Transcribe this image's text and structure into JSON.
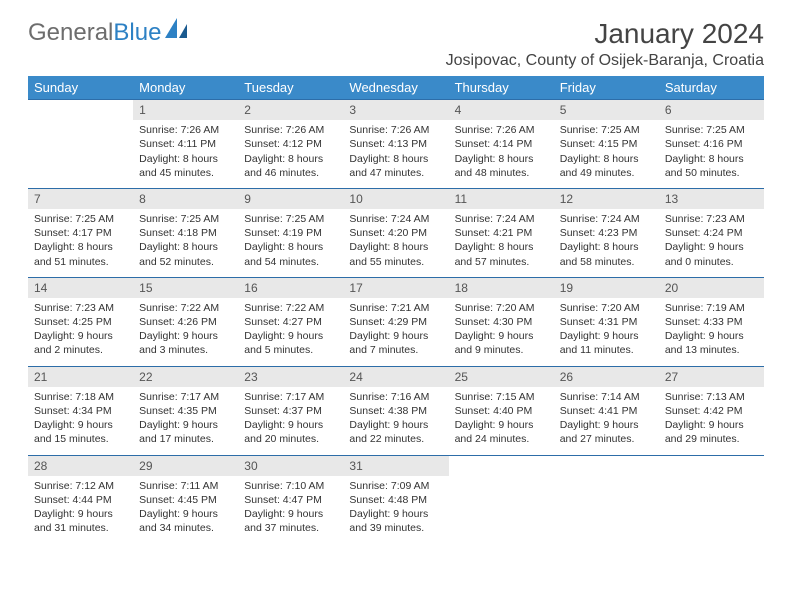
{
  "logo": {
    "part1": "General",
    "part2": "Blue"
  },
  "title": {
    "month": "January 2024",
    "location": "Josipovac, County of Osijek-Baranja, Croatia"
  },
  "dayHeaders": [
    "Sunday",
    "Monday",
    "Tuesday",
    "Wednesday",
    "Thursday",
    "Friday",
    "Saturday"
  ],
  "colors": {
    "headerBg": "#3a8ac9",
    "headerText": "#ffffff",
    "dayNumBg": "#e8e8e8",
    "borderTop": "#2d6da8",
    "text": "#333333",
    "logoGray": "#6d6d6d",
    "logoBlue": "#2d81c4"
  },
  "weeks": [
    {
      "nums": [
        "",
        "1",
        "2",
        "3",
        "4",
        "5",
        "6"
      ],
      "cells": [
        {
          "lines": []
        },
        {
          "lines": [
            "Sunrise: 7:26 AM",
            "Sunset: 4:11 PM",
            "Daylight: 8 hours",
            "and 45 minutes."
          ]
        },
        {
          "lines": [
            "Sunrise: 7:26 AM",
            "Sunset: 4:12 PM",
            "Daylight: 8 hours",
            "and 46 minutes."
          ]
        },
        {
          "lines": [
            "Sunrise: 7:26 AM",
            "Sunset: 4:13 PM",
            "Daylight: 8 hours",
            "and 47 minutes."
          ]
        },
        {
          "lines": [
            "Sunrise: 7:26 AM",
            "Sunset: 4:14 PM",
            "Daylight: 8 hours",
            "and 48 minutes."
          ]
        },
        {
          "lines": [
            "Sunrise: 7:25 AM",
            "Sunset: 4:15 PM",
            "Daylight: 8 hours",
            "and 49 minutes."
          ]
        },
        {
          "lines": [
            "Sunrise: 7:25 AM",
            "Sunset: 4:16 PM",
            "Daylight: 8 hours",
            "and 50 minutes."
          ]
        }
      ]
    },
    {
      "nums": [
        "7",
        "8",
        "9",
        "10",
        "11",
        "12",
        "13"
      ],
      "cells": [
        {
          "lines": [
            "Sunrise: 7:25 AM",
            "Sunset: 4:17 PM",
            "Daylight: 8 hours",
            "and 51 minutes."
          ]
        },
        {
          "lines": [
            "Sunrise: 7:25 AM",
            "Sunset: 4:18 PM",
            "Daylight: 8 hours",
            "and 52 minutes."
          ]
        },
        {
          "lines": [
            "Sunrise: 7:25 AM",
            "Sunset: 4:19 PM",
            "Daylight: 8 hours",
            "and 54 minutes."
          ]
        },
        {
          "lines": [
            "Sunrise: 7:24 AM",
            "Sunset: 4:20 PM",
            "Daylight: 8 hours",
            "and 55 minutes."
          ]
        },
        {
          "lines": [
            "Sunrise: 7:24 AM",
            "Sunset: 4:21 PM",
            "Daylight: 8 hours",
            "and 57 minutes."
          ]
        },
        {
          "lines": [
            "Sunrise: 7:24 AM",
            "Sunset: 4:23 PM",
            "Daylight: 8 hours",
            "and 58 minutes."
          ]
        },
        {
          "lines": [
            "Sunrise: 7:23 AM",
            "Sunset: 4:24 PM",
            "Daylight: 9 hours",
            "and 0 minutes."
          ]
        }
      ]
    },
    {
      "nums": [
        "14",
        "15",
        "16",
        "17",
        "18",
        "19",
        "20"
      ],
      "cells": [
        {
          "lines": [
            "Sunrise: 7:23 AM",
            "Sunset: 4:25 PM",
            "Daylight: 9 hours",
            "and 2 minutes."
          ]
        },
        {
          "lines": [
            "Sunrise: 7:22 AM",
            "Sunset: 4:26 PM",
            "Daylight: 9 hours",
            "and 3 minutes."
          ]
        },
        {
          "lines": [
            "Sunrise: 7:22 AM",
            "Sunset: 4:27 PM",
            "Daylight: 9 hours",
            "and 5 minutes."
          ]
        },
        {
          "lines": [
            "Sunrise: 7:21 AM",
            "Sunset: 4:29 PM",
            "Daylight: 9 hours",
            "and 7 minutes."
          ]
        },
        {
          "lines": [
            "Sunrise: 7:20 AM",
            "Sunset: 4:30 PM",
            "Daylight: 9 hours",
            "and 9 minutes."
          ]
        },
        {
          "lines": [
            "Sunrise: 7:20 AM",
            "Sunset: 4:31 PM",
            "Daylight: 9 hours",
            "and 11 minutes."
          ]
        },
        {
          "lines": [
            "Sunrise: 7:19 AM",
            "Sunset: 4:33 PM",
            "Daylight: 9 hours",
            "and 13 minutes."
          ]
        }
      ]
    },
    {
      "nums": [
        "21",
        "22",
        "23",
        "24",
        "25",
        "26",
        "27"
      ],
      "cells": [
        {
          "lines": [
            "Sunrise: 7:18 AM",
            "Sunset: 4:34 PM",
            "Daylight: 9 hours",
            "and 15 minutes."
          ]
        },
        {
          "lines": [
            "Sunrise: 7:17 AM",
            "Sunset: 4:35 PM",
            "Daylight: 9 hours",
            "and 17 minutes."
          ]
        },
        {
          "lines": [
            "Sunrise: 7:17 AM",
            "Sunset: 4:37 PM",
            "Daylight: 9 hours",
            "and 20 minutes."
          ]
        },
        {
          "lines": [
            "Sunrise: 7:16 AM",
            "Sunset: 4:38 PM",
            "Daylight: 9 hours",
            "and 22 minutes."
          ]
        },
        {
          "lines": [
            "Sunrise: 7:15 AM",
            "Sunset: 4:40 PM",
            "Daylight: 9 hours",
            "and 24 minutes."
          ]
        },
        {
          "lines": [
            "Sunrise: 7:14 AM",
            "Sunset: 4:41 PM",
            "Daylight: 9 hours",
            "and 27 minutes."
          ]
        },
        {
          "lines": [
            "Sunrise: 7:13 AM",
            "Sunset: 4:42 PM",
            "Daylight: 9 hours",
            "and 29 minutes."
          ]
        }
      ]
    },
    {
      "nums": [
        "28",
        "29",
        "30",
        "31",
        "",
        "",
        ""
      ],
      "cells": [
        {
          "lines": [
            "Sunrise: 7:12 AM",
            "Sunset: 4:44 PM",
            "Daylight: 9 hours",
            "and 31 minutes."
          ]
        },
        {
          "lines": [
            "Sunrise: 7:11 AM",
            "Sunset: 4:45 PM",
            "Daylight: 9 hours",
            "and 34 minutes."
          ]
        },
        {
          "lines": [
            "Sunrise: 7:10 AM",
            "Sunset: 4:47 PM",
            "Daylight: 9 hours",
            "and 37 minutes."
          ]
        },
        {
          "lines": [
            "Sunrise: 7:09 AM",
            "Sunset: 4:48 PM",
            "Daylight: 9 hours",
            "and 39 minutes."
          ]
        },
        {
          "lines": []
        },
        {
          "lines": []
        },
        {
          "lines": []
        }
      ]
    }
  ]
}
